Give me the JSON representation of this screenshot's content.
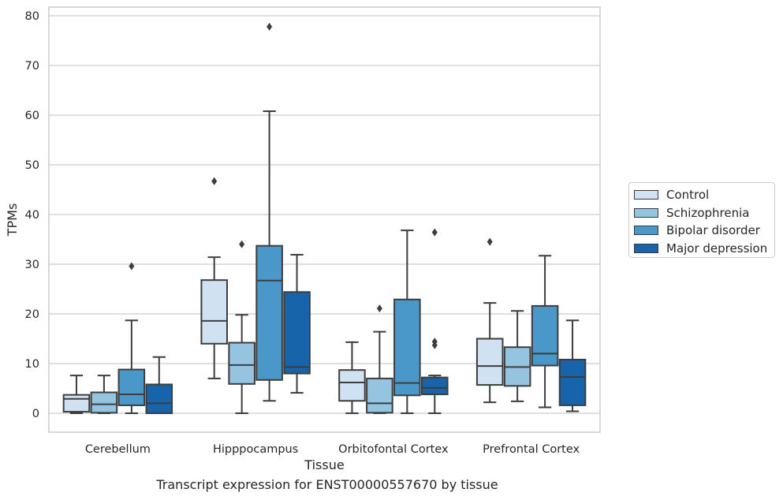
{
  "caption": "Transcript expression for ENST00000557670 by tissue",
  "chart_data": {
    "type": "boxplot",
    "title": "",
    "xlabel": "Tissue",
    "ylabel": "TPMs",
    "ylim": [
      -3.5,
      82
    ],
    "yticks": [
      0,
      10,
      20,
      30,
      40,
      50,
      60,
      70,
      80
    ],
    "grid": "horizontal",
    "legend_position": "right",
    "categories": [
      "Cerebellum",
      "Hipppocampus",
      "Orbitofontal Cortex",
      "Prefrontal Cortex"
    ],
    "series": [
      {
        "name": "Control",
        "color": "#d0e1f2",
        "boxes": [
          {
            "whislo": 0,
            "q1": 0.3,
            "med": 2.9,
            "q3": 3.7,
            "whishi": 7.6,
            "fliers": []
          },
          {
            "whislo": 7.0,
            "q1": 14.0,
            "med": 18.6,
            "q3": 26.8,
            "whishi": 31.4,
            "fliers": [
              46.7
            ]
          },
          {
            "whislo": 0,
            "q1": 2.5,
            "med": 6.2,
            "q3": 8.7,
            "whishi": 14.3,
            "fliers": []
          },
          {
            "whislo": 2.2,
            "q1": 5.7,
            "med": 9.5,
            "q3": 15.0,
            "whishi": 22.2,
            "fliers": [
              34.5
            ]
          }
        ]
      },
      {
        "name": "Schizophrenia",
        "color": "#94c4df",
        "boxes": [
          {
            "whislo": 0,
            "q1": 0.1,
            "med": 1.8,
            "q3": 4.2,
            "whishi": 7.6,
            "fliers": []
          },
          {
            "whislo": 0,
            "q1": 5.9,
            "med": 9.7,
            "q3": 14.2,
            "whishi": 19.8,
            "fliers": [
              34.0
            ]
          },
          {
            "whislo": 0,
            "q1": 0.1,
            "med": 2.0,
            "q3": 7.0,
            "whishi": 16.4,
            "fliers": [
              21.1
            ]
          },
          {
            "whislo": 2.4,
            "q1": 5.5,
            "med": 9.3,
            "q3": 13.3,
            "whishi": 20.6,
            "fliers": []
          }
        ]
      },
      {
        "name": "Bipolar disorder",
        "color": "#4a98c9",
        "boxes": [
          {
            "whislo": 0,
            "q1": 1.6,
            "med": 3.8,
            "q3": 8.8,
            "whishi": 18.7,
            "fliers": [
              29.6
            ]
          },
          {
            "whislo": 2.5,
            "q1": 6.7,
            "med": 26.7,
            "q3": 33.7,
            "whishi": 60.8,
            "fliers": [
              77.8
            ]
          },
          {
            "whislo": 0,
            "q1": 3.6,
            "med": 6.1,
            "q3": 22.9,
            "whishi": 36.8,
            "fliers": []
          },
          {
            "whislo": 1.2,
            "q1": 9.6,
            "med": 12.0,
            "q3": 21.6,
            "whishi": 31.7,
            "fliers": []
          }
        ]
      },
      {
        "name": "Major depression",
        "color": "#1764ab",
        "boxes": [
          {
            "whislo": 0,
            "q1": 0,
            "med": 2.0,
            "q3": 5.8,
            "whishi": 11.3,
            "fliers": []
          },
          {
            "whislo": 4.1,
            "q1": 8.0,
            "med": 9.3,
            "q3": 24.4,
            "whishi": 31.9,
            "fliers": []
          },
          {
            "whislo": 0,
            "q1": 3.8,
            "med": 5.1,
            "q3": 7.2,
            "whishi": 7.6,
            "fliers": [
              13.7,
              14.4,
              36.4
            ]
          },
          {
            "whislo": 0.4,
            "q1": 1.6,
            "med": 7.3,
            "q3": 10.8,
            "whishi": 18.7,
            "fliers": []
          }
        ]
      }
    ]
  }
}
